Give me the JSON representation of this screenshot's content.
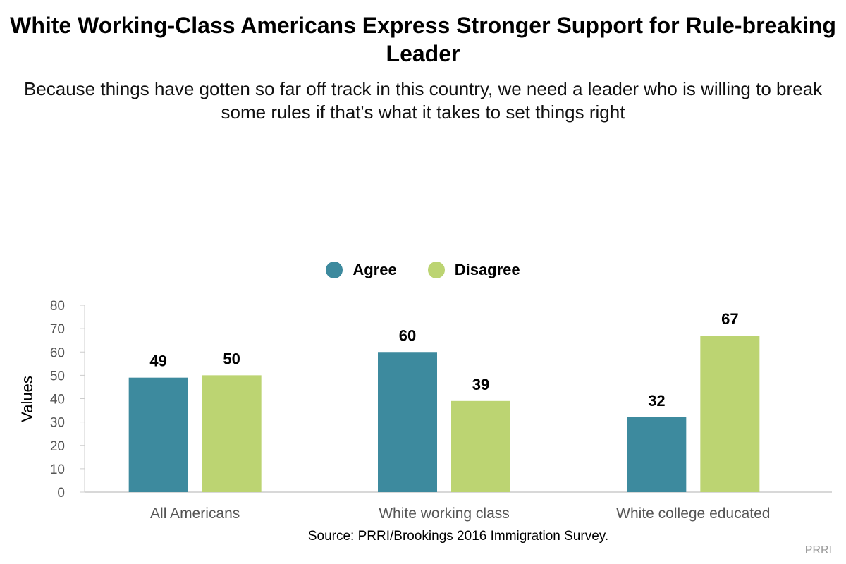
{
  "chart_data": {
    "type": "bar",
    "title": "White Working-Class Americans Express Stronger Support for Rule-breaking Leader",
    "subtitle": "Because things have gotten so far off track in this country, we need a leader who is willing to break some rules if that's what it takes to set things right",
    "categories": [
      "All Americans",
      "White working class",
      "White college educated"
    ],
    "series": [
      {
        "name": "Agree",
        "values": [
          49,
          60,
          32
        ],
        "color": "#3d8a9e"
      },
      {
        "name": "Disagree",
        "values": [
          50,
          39,
          67
        ],
        "color": "#bcd472"
      }
    ],
    "xlabel": "",
    "ylabel": "Values",
    "ylim": [
      0,
      80
    ],
    "yticks": [
      0,
      10,
      20,
      30,
      40,
      50,
      60,
      70,
      80
    ],
    "legend_position": "top-center",
    "grid": false
  },
  "source": "Source: PRRI/Brookings 2016 Immigration Survey.",
  "credit": "PRRI",
  "colors": {
    "axis": "#cccccc",
    "tick_text": "#555555"
  }
}
